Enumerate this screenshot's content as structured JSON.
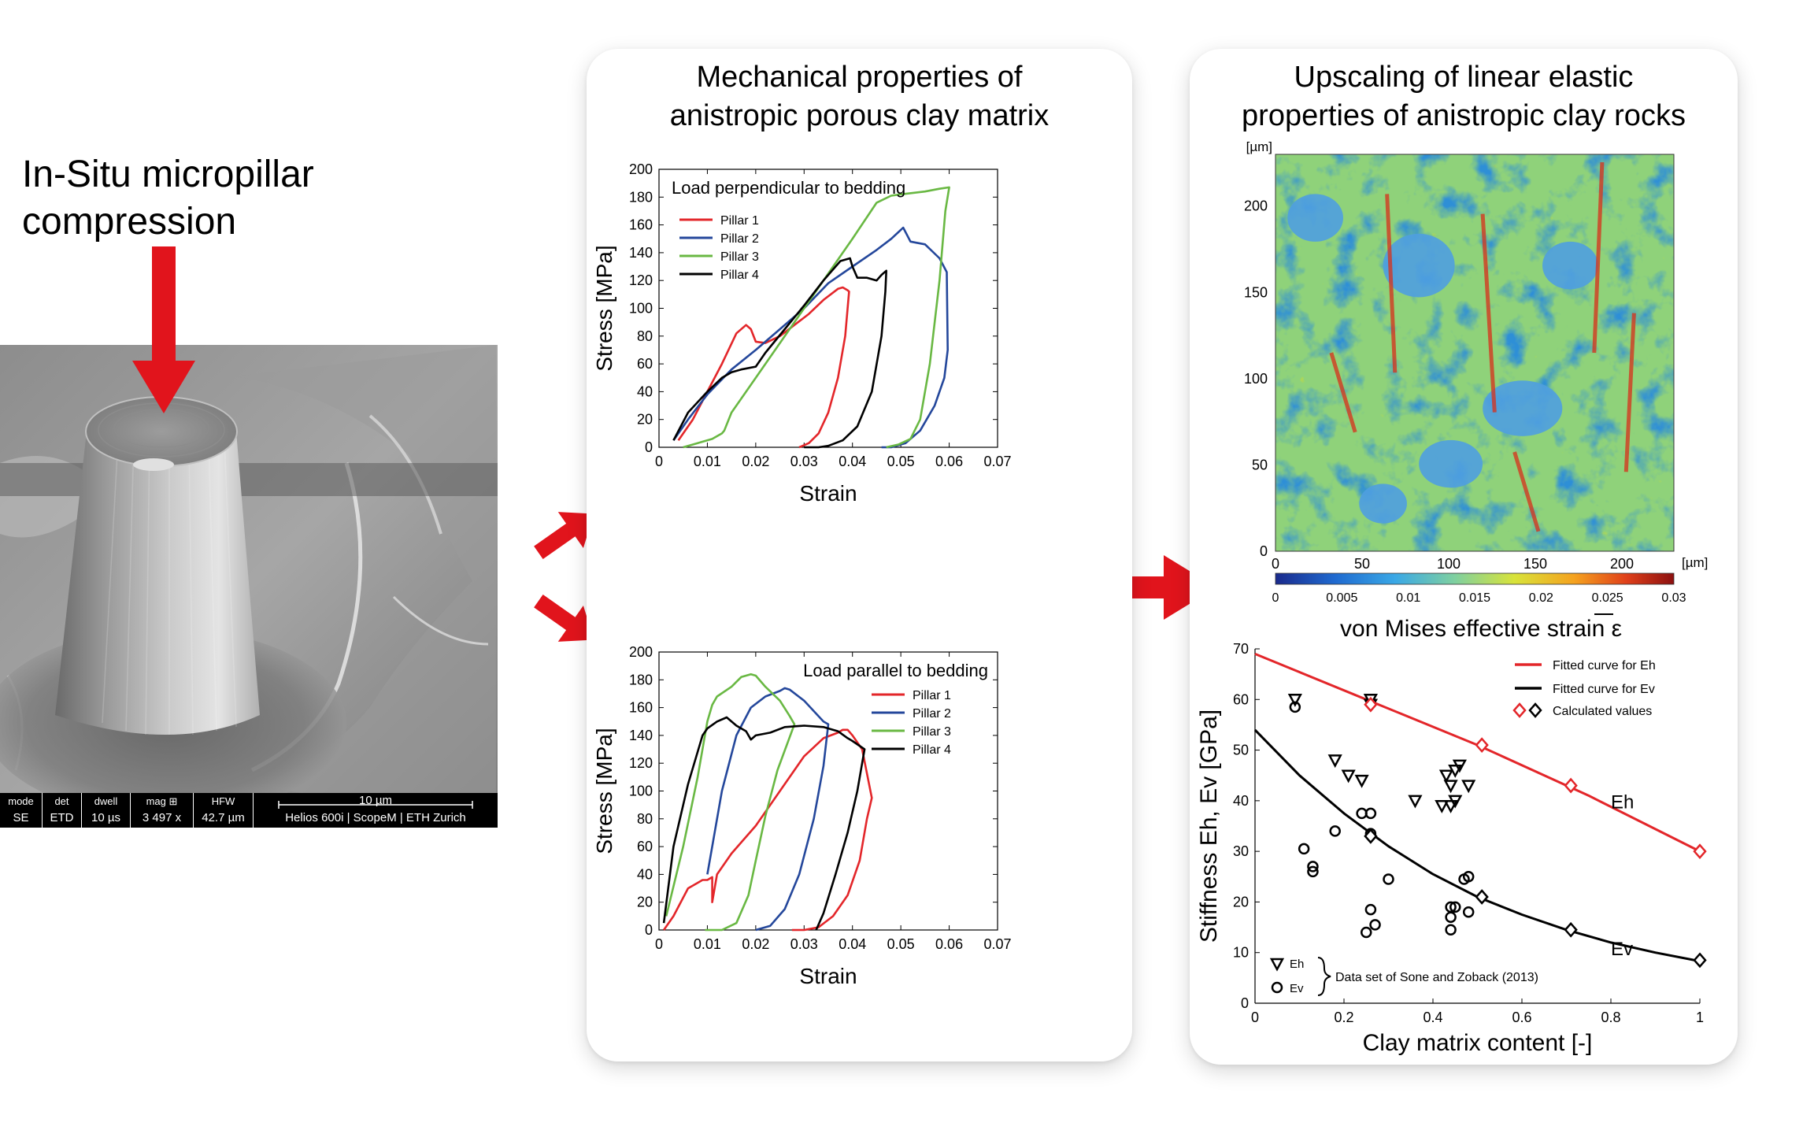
{
  "left": {
    "title_line1": "In-Situ micropillar",
    "title_line2": "compression",
    "sem_info": {
      "mode_label": "mode",
      "mode_value": "SE",
      "det_label": "det",
      "det_value": "ETD",
      "dwell_label": "dwell",
      "dwell_value": "10 µs",
      "mag_label": "mag ⊞",
      "mag_value": "3 497 x",
      "hfw_label": "HFW",
      "hfw_value": "42.7 µm",
      "scale_label": "10 µm",
      "instrument": "Helios 600i | ScopeM | ETH Zurich"
    }
  },
  "middle_panel": {
    "title_line1": "Mechanical properties of",
    "title_line2": "anistropic porous clay matrix"
  },
  "right_panel": {
    "title_line1": "Upscaling of linear elastic",
    "title_line2": "properties of anistropic clay rocks"
  },
  "colors": {
    "arrow": "#e1141c",
    "pillar1": "#e3262a",
    "pillar2": "#24479b",
    "pillar3": "#69b843",
    "pillar4": "#000000"
  },
  "chart_data": [
    {
      "type": "line",
      "title": "Load perpendicular to bedding",
      "xlabel": "Strain",
      "ylabel": "Stress [MPa]",
      "xlim": [
        0,
        0.07
      ],
      "ylim": [
        0,
        200
      ],
      "xticks": [
        0,
        0.01,
        0.02,
        0.03,
        0.04,
        0.05,
        0.06,
        0.07
      ],
      "yticks": [
        0,
        20,
        40,
        60,
        80,
        100,
        120,
        140,
        160,
        180,
        200
      ],
      "legend_position": "top-left",
      "series": [
        {
          "name": "Pillar 1",
          "color": "#e3262a",
          "x": [
            0.004,
            0.007,
            0.01,
            0.013,
            0.016,
            0.018,
            0.019,
            0.02,
            0.022,
            0.025,
            0.028,
            0.031,
            0.034,
            0.037,
            0.038,
            0.039,
            0.0393,
            0.0385,
            0.037,
            0.035,
            0.033,
            0.031,
            0.029
          ],
          "y": [
            5,
            20,
            40,
            60,
            82,
            88,
            85,
            76,
            75,
            80,
            88,
            96,
            106,
            114,
            115,
            113,
            112,
            80,
            50,
            25,
            10,
            3,
            0
          ]
        },
        {
          "name": "Pillar 2",
          "color": "#24479b",
          "x": [
            0.003,
            0.006,
            0.01,
            0.015,
            0.02,
            0.025,
            0.03,
            0.035,
            0.04,
            0.045,
            0.048,
            0.0505,
            0.052,
            0.055,
            0.058,
            0.0595,
            0.0597,
            0.059,
            0.057,
            0.054,
            0.051,
            0.048,
            0.046
          ],
          "y": [
            5,
            20,
            38,
            56,
            70,
            85,
            100,
            118,
            130,
            142,
            150,
            158,
            148,
            146,
            136,
            126,
            70,
            50,
            30,
            12,
            3,
            0,
            0
          ]
        },
        {
          "name": "Pillar 3",
          "color": "#69b843",
          "x": [
            0.005,
            0.008,
            0.011,
            0.013,
            0.0135,
            0.015,
            0.02,
            0.025,
            0.03,
            0.035,
            0.04,
            0.045,
            0.048,
            0.05,
            0.055,
            0.058,
            0.06,
            0.0592,
            0.058,
            0.056,
            0.054,
            0.052,
            0.0495,
            0.047
          ],
          "y": [
            0,
            3,
            6,
            10,
            12,
            25,
            50,
            75,
            100,
            125,
            150,
            176,
            181,
            182,
            184,
            186,
            187,
            170,
            120,
            60,
            20,
            6,
            2,
            0
          ]
        },
        {
          "name": "Pillar 4",
          "color": "#000000",
          "x": [
            0.003,
            0.006,
            0.01,
            0.013,
            0.015,
            0.017,
            0.02,
            0.022,
            0.026,
            0.03,
            0.034,
            0.036,
            0.0375,
            0.0395,
            0.04,
            0.041,
            0.043,
            0.045,
            0.046,
            0.047,
            0.0468,
            0.046,
            0.044,
            0.041,
            0.038,
            0.035,
            0.033,
            0.031,
            0.03
          ],
          "y": [
            5,
            25,
            40,
            50,
            54,
            56,
            58,
            68,
            85,
            102,
            120,
            128,
            134,
            136,
            130,
            122,
            122,
            120,
            124,
            127,
            112,
            80,
            40,
            15,
            5,
            1,
            0,
            0,
            0
          ]
        }
      ]
    },
    {
      "type": "line",
      "title": "Load parallel to bedding",
      "xlabel": "Strain",
      "ylabel": "Stress [MPa]",
      "xlim": [
        0,
        0.07
      ],
      "ylim": [
        0,
        200
      ],
      "xticks": [
        0,
        0.01,
        0.02,
        0.03,
        0.04,
        0.05,
        0.06,
        0.07
      ],
      "yticks": [
        0,
        20,
        40,
        60,
        80,
        100,
        120,
        140,
        160,
        180,
        200
      ],
      "legend_position": "top-right",
      "series": [
        {
          "name": "Pillar 1",
          "color": "#e3262a",
          "x": [
            0.001,
            0.003,
            0.006,
            0.009,
            0.01,
            0.011,
            0.011,
            0.012,
            0.015,
            0.02,
            0.025,
            0.03,
            0.034,
            0.037,
            0.038,
            0.039,
            0.04,
            0.042,
            0.044,
            0.043,
            0.0415,
            0.039,
            0.036,
            0.033,
            0.03,
            0.0275
          ],
          "y": [
            0,
            10,
            30,
            36,
            36,
            38,
            20,
            40,
            55,
            75,
            100,
            125,
            138,
            142,
            144,
            144,
            140,
            130,
            95,
            80,
            50,
            25,
            10,
            2,
            0,
            0
          ]
        },
        {
          "name": "Pillar 2",
          "color": "#24479b",
          "x": [
            0.01,
            0.013,
            0.016,
            0.019,
            0.022,
            0.025,
            0.026,
            0.027,
            0.03,
            0.034,
            0.035,
            0.034,
            0.032,
            0.029,
            0.026,
            0.023,
            0.02
          ],
          "y": [
            40,
            100,
            140,
            160,
            168,
            172,
            174,
            173,
            165,
            150,
            148,
            118,
            80,
            40,
            15,
            3,
            0
          ]
        },
        {
          "name": "Pillar 3",
          "color": "#69b843",
          "x": [
            0.0015,
            0.005,
            0.008,
            0.01,
            0.011,
            0.012,
            0.015,
            0.017,
            0.019,
            0.02,
            0.022,
            0.025,
            0.027,
            0.028,
            0.0245,
            0.022,
            0.02,
            0.0185,
            0.016,
            0.013,
            0.011,
            0.0095
          ],
          "y": [
            10,
            60,
            110,
            150,
            162,
            168,
            175,
            182,
            184,
            183,
            175,
            165,
            154,
            148,
            115,
            82,
            50,
            25,
            5,
            0,
            0,
            0
          ]
        },
        {
          "name": "Pillar 4",
          "color": "#000000",
          "x": [
            0.001,
            0.003,
            0.006,
            0.009,
            0.01,
            0.012,
            0.014,
            0.016,
            0.018,
            0.019,
            0.02,
            0.023,
            0.026,
            0.03,
            0.034,
            0.037,
            0.039,
            0.04,
            0.0425,
            0.042,
            0.041,
            0.039,
            0.0365,
            0.034,
            0.0325
          ],
          "y": [
            5,
            60,
            105,
            140,
            145,
            150,
            153,
            147,
            143,
            137,
            140,
            142,
            146,
            147,
            146,
            143,
            138,
            136,
            130,
            120,
            100,
            70,
            40,
            12,
            0
          ]
        }
      ]
    },
    {
      "type": "heatmap",
      "xlabel": "[µm]",
      "ylabel": "[µm]",
      "xlim": [
        0,
        230
      ],
      "ylim": [
        0,
        230
      ],
      "xticks": [
        0,
        50,
        100,
        150,
        200
      ],
      "yticks": [
        0,
        50,
        100,
        150,
        200
      ],
      "colorbar_label": "von Mises effective strain ε",
      "colorbar_range": [
        0,
        0.03
      ],
      "colorbar_ticks": [
        "0",
        "0.005",
        "0.01",
        "0.015",
        "0.02",
        "0.025",
        "0.03"
      ]
    },
    {
      "type": "scatter",
      "xlabel": "Clay matrix content [-]",
      "ylabel": "Stiffness Eh, Ev [GPa]",
      "xlim": [
        0,
        1
      ],
      "ylim": [
        0,
        70
      ],
      "xticks": [
        0,
        0.2,
        0.4,
        0.6,
        0.8,
        1
      ],
      "yticks": [
        0,
        10,
        20,
        30,
        40,
        50,
        60,
        70
      ],
      "legend": [
        "Fitted curve for Eh",
        "Fitted curve for Ev",
        "Calculated values"
      ],
      "legend_position": "top-right",
      "curve_labels": {
        "eh": "Eh",
        "ev": "Ev"
      },
      "data_legend": {
        "eh": "Eh",
        "ev": "Ev",
        "source": "Data set of Sone and Zoback (2013)"
      },
      "fitted_eh": {
        "x": [
          0,
          0.25,
          0.5,
          0.75,
          1
        ],
        "y": [
          69,
          60,
          51,
          41,
          30
        ]
      },
      "fitted_ev": {
        "x": [
          0,
          0.1,
          0.2,
          0.3,
          0.4,
          0.5,
          0.6,
          0.7,
          0.8,
          0.9,
          1
        ],
        "y": [
          54,
          45,
          37.5,
          31,
          25.5,
          21,
          17.5,
          14.5,
          12,
          10,
          8.3
        ]
      },
      "calculated_eh": {
        "x": [
          0.26,
          0.51,
          0.71,
          1.0
        ],
        "y": [
          59,
          51,
          43,
          30
        ]
      },
      "calculated_ev": {
        "x": [
          0.26,
          0.51,
          0.71,
          1.0
        ],
        "y": [
          33,
          21,
          14.5,
          8.5
        ]
      },
      "sone_zoback_eh": {
        "x": [
          0.09,
          0.26,
          0.26,
          0.18,
          0.21,
          0.24,
          0.36,
          0.42,
          0.44,
          0.44,
          0.43,
          0.46,
          0.45,
          0.48,
          0.45
        ],
        "y": [
          60,
          59,
          60,
          48,
          45,
          44,
          40,
          39,
          39,
          43,
          45,
          47,
          46,
          43,
          40
        ]
      },
      "sone_zoback_ev": {
        "x": [
          0.09,
          0.11,
          0.13,
          0.13,
          0.18,
          0.24,
          0.26,
          0.26,
          0.26,
          0.25,
          0.27,
          0.3,
          0.44,
          0.44,
          0.44,
          0.45,
          0.48,
          0.48,
          0.47
        ],
        "y": [
          58.5,
          30.5,
          27,
          26,
          34,
          37.5,
          37.5,
          33.5,
          18.5,
          14,
          15.5,
          24.5,
          19,
          17,
          14.5,
          19,
          18,
          25,
          24.5
        ]
      }
    }
  ]
}
